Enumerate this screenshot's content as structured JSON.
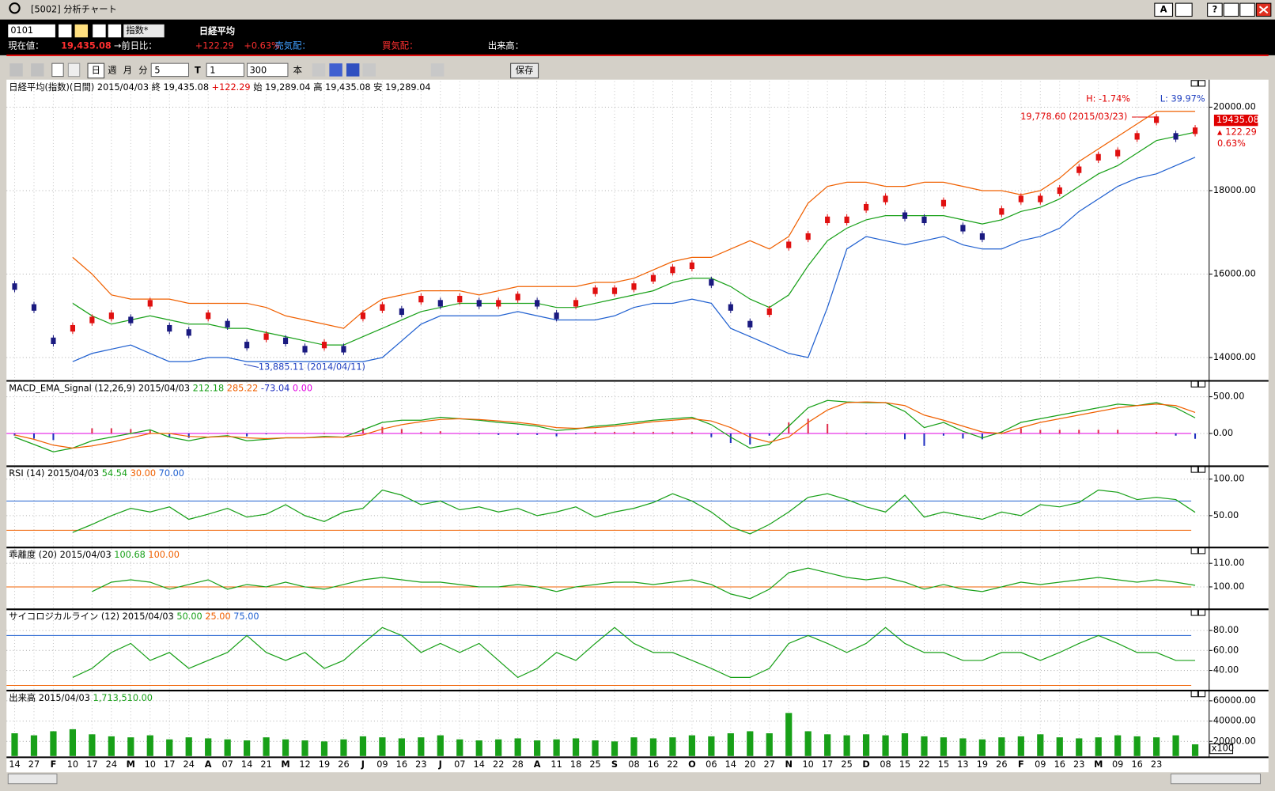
{
  "window": {
    "title": "[5002] 分析チャート",
    "buttons": [
      "A",
      "?"
    ]
  },
  "toolbar": {
    "code": "0101",
    "index_select": "指数*",
    "name": "日経平均",
    "period_buttons": [
      "日",
      "週",
      "月",
      "分"
    ],
    "minutes": "5",
    "t_label": "T",
    "t_value": "1",
    "count": "300",
    "count_unit": "本",
    "save": "保存"
  },
  "quote": {
    "price_label": "現在値：",
    "price": "19,435.08",
    "change_label": "→前日比：",
    "change": "+122.29",
    "change_pct": "+0.63%",
    "ask_label": "売気配：",
    "bid_label": "買気配：",
    "volume_label": "出来高："
  },
  "chart_data": [
    {
      "type": "line",
      "legend": [
        {
          "text": "日経平均(指数)(日間) 2015/04/03  終 19,435.08 ",
          "color": "#000000"
        },
        {
          "text": "+122.29",
          "color": "#e00000"
        },
        {
          "text": "  始 19,289.04 高 19,435.08 安 19,289.04",
          "color": "#000000"
        }
      ],
      "ylim": [
        13470,
        20620
      ],
      "yticks": [
        {
          "value": 14000,
          "label": "14000.00"
        },
        {
          "value": 16000,
          "label": "16000.00"
        },
        {
          "value": 18000,
          "label": "18000.00"
        },
        {
          "value": 20000,
          "label": "20000.00"
        }
      ],
      "grid": true,
      "series": [
        {
          "type": "line",
          "color": "#f06000",
          "values": [
            null,
            null,
            null,
            16400,
            16000,
            15500,
            15400,
            15400,
            15400,
            15300,
            15300,
            15300,
            15300,
            15200,
            15000,
            14900,
            14800,
            14700,
            15100,
            15400,
            15500,
            15600,
            15600,
            15600,
            15500,
            15600,
            15700,
            15700,
            15700,
            15700,
            15800,
            15800,
            15900,
            16100,
            16300,
            16400,
            16400,
            16600,
            16800,
            16600,
            16900,
            17700,
            18100,
            18200,
            18200,
            18100,
            18100,
            18200,
            18200,
            18100,
            18000,
            18000,
            17900,
            18000,
            18300,
            18700,
            19000,
            19300,
            19600,
            19900,
            19900,
            19900
          ]
        },
        {
          "type": "line",
          "color": "#2060d0",
          "values": [
            null,
            null,
            null,
            13900,
            14100,
            14200,
            14300,
            14100,
            13900,
            13900,
            14000,
            14000,
            13900,
            13900,
            13900,
            13900,
            13900,
            13900,
            13900,
            14000,
            14400,
            14800,
            15000,
            15000,
            15000,
            15000,
            15100,
            15000,
            14900,
            14900,
            14900,
            15000,
            15200,
            15300,
            15300,
            15400,
            15300,
            14700,
            14500,
            14300,
            14100,
            14000,
            15200,
            16600,
            16900,
            16800,
            16700,
            16800,
            16900,
            16700,
            16600,
            16600,
            16800,
            16900,
            17100,
            17500,
            17800,
            18100,
            18300,
            18400,
            18600,
            18800
          ]
        },
        {
          "type": "line",
          "color": "#18a018",
          "values": [
            null,
            null,
            null,
            15300,
            15000,
            14800,
            14900,
            15000,
            14900,
            14800,
            14800,
            14700,
            14700,
            14600,
            14500,
            14400,
            14300,
            14300,
            14500,
            14700,
            14900,
            15100,
            15200,
            15300,
            15300,
            15300,
            15300,
            15300,
            15200,
            15200,
            15300,
            15400,
            15500,
            15600,
            15800,
            15900,
            15900,
            15700,
            15400,
            15200,
            15500,
            16200,
            16800,
            17100,
            17300,
            17400,
            17400,
            17400,
            17400,
            17300,
            17200,
            17300,
            17500,
            17600,
            17800,
            18100,
            18400,
            18600,
            18900,
            19200,
            19300,
            19400
          ]
        },
        {
          "type": "candle",
          "color": "#1a1a80",
          "up_color": "#e01010",
          "values": [
            15700,
            15200,
            14400,
            14700,
            14900,
            15000,
            14900,
            15300,
            14700,
            14600,
            15000,
            14800,
            14300,
            14500,
            14400,
            14200,
            14300,
            14200,
            15000,
            15200,
            15100,
            15400,
            15300,
            15400,
            15300,
            15300,
            15450,
            15300,
            15000,
            15300,
            15600,
            15600,
            15700,
            15900,
            16100,
            16200,
            15800,
            15200,
            14800,
            15100,
            16700,
            16900,
            17300,
            17300,
            17600,
            17800,
            17400,
            17300,
            17700,
            17100,
            16900,
            17500,
            17800,
            17800,
            18000,
            18500,
            18800,
            18900,
            19300,
            19700,
            19300,
            19435
          ]
        }
      ],
      "annotations": {
        "high": "H: -1.74%",
        "low": "L: 39.97%",
        "max": "19,778.60 (2015/03/23)",
        "min": "13,885.11 (2014/04/11)",
        "last": "19435.08",
        "change": "122.29",
        "change_pct": "0.63%"
      }
    },
    {
      "type": "line",
      "legend": [
        {
          "text": "MACD_EMA_Signal (12,26,9) 2015/04/03 ",
          "color": "#000000"
        },
        {
          "text": "212.18 ",
          "color": "#18a018"
        },
        {
          "text": "285.22 ",
          "color": "#f06000"
        },
        {
          "text": "-73.04 ",
          "color": "#2030c0"
        },
        {
          "text": "0.00",
          "color": "#e000e0"
        }
      ],
      "ylim": [
        -430,
        700
      ],
      "yticks": [
        {
          "value": 0,
          "label": "0.00"
        },
        {
          "value": 500,
          "label": "500.00"
        }
      ],
      "grid": true,
      "hlines": [
        {
          "value": 0,
          "color": "#e000e0"
        }
      ],
      "series": [
        {
          "type": "bar",
          "color": "#e03050",
          "neg_color": "#2030c0",
          "values": [
            -30,
            -70,
            -90,
            0,
            70,
            70,
            60,
            50,
            -50,
            -60,
            0,
            10,
            -40,
            -10,
            0,
            0,
            10,
            0,
            70,
            90,
            60,
            20,
            30,
            0,
            -10,
            -20,
            -20,
            -20,
            -40,
            -10,
            20,
            20,
            20,
            20,
            20,
            20,
            -50,
            -130,
            -150,
            -30,
            150,
            200,
            130,
            10,
            -10,
            0,
            -80,
            -170,
            -30,
            -70,
            -80,
            20,
            70,
            50,
            50,
            50,
            50,
            50,
            0,
            20,
            -30,
            -73.04
          ]
        },
        {
          "type": "line",
          "color": "#18a018",
          "values": [
            -50,
            -150,
            -250,
            -200,
            -100,
            -50,
            0,
            50,
            -50,
            -100,
            -50,
            -30,
            -100,
            -80,
            -60,
            -60,
            -40,
            -50,
            50,
            150,
            180,
            180,
            220,
            200,
            180,
            150,
            130,
            100,
            40,
            60,
            100,
            120,
            150,
            180,
            200,
            220,
            120,
            -50,
            -200,
            -150,
            100,
            350,
            450,
            430,
            420,
            420,
            300,
            80,
            150,
            30,
            -60,
            20,
            150,
            200,
            250,
            300,
            350,
            400,
            380,
            420,
            350,
            212.18
          ]
        },
        {
          "type": "line",
          "color": "#f06000",
          "values": [
            -20,
            -80,
            -160,
            -200,
            -170,
            -120,
            -60,
            0,
            0,
            -40,
            -50,
            -40,
            -60,
            -70,
            -60,
            -60,
            -50,
            -50,
            -20,
            60,
            120,
            160,
            190,
            200,
            190,
            170,
            150,
            120,
            80,
            70,
            80,
            100,
            130,
            160,
            180,
            200,
            170,
            80,
            -50,
            -120,
            -50,
            150,
            320,
            420,
            430,
            420,
            380,
            250,
            180,
            100,
            20,
            0,
            80,
            150,
            200,
            250,
            300,
            350,
            380,
            400,
            380,
            285.22
          ]
        }
      ]
    },
    {
      "type": "line",
      "legend": [
        {
          "text": "RSI (14) 2015/04/03 ",
          "color": "#000000"
        },
        {
          "text": "54.54 ",
          "color": "#18a018"
        },
        {
          "text": "30.00 ",
          "color": "#f06000"
        },
        {
          "text": "70.00",
          "color": "#2060d0"
        }
      ],
      "ylim": [
        8,
        116
      ],
      "yticks": [
        {
          "value": 50,
          "label": "50.00"
        },
        {
          "value": 100,
          "label": "100.00"
        }
      ],
      "grid": true,
      "hlines": [
        {
          "value": 70,
          "color": "#2060d0"
        },
        {
          "value": 30,
          "color": "#f06000"
        }
      ],
      "series": [
        {
          "type": "line",
          "color": "#18a018",
          "values": [
            null,
            null,
            null,
            27,
            38,
            50,
            60,
            55,
            62,
            45,
            52,
            60,
            48,
            52,
            65,
            50,
            42,
            55,
            60,
            85,
            78,
            65,
            70,
            58,
            62,
            55,
            60,
            50,
            55,
            62,
            48,
            55,
            60,
            68,
            80,
            70,
            55,
            35,
            25,
            38,
            55,
            75,
            80,
            72,
            62,
            55,
            78,
            48,
            55,
            50,
            45,
            55,
            50,
            65,
            62,
            68,
            85,
            82,
            72,
            75,
            72,
            54.54
          ]
        }
      ]
    },
    {
      "type": "line",
      "legend": [
        {
          "text": "乖離度 (20) 2015/04/03 ",
          "color": "#000000"
        },
        {
          "text": "100.68 ",
          "color": "#18a018"
        },
        {
          "text": "100.00",
          "color": "#f06000"
        }
      ],
      "ylim": [
        91,
        116.2
      ],
      "yticks": [
        {
          "value": 100,
          "label": "100.00"
        },
        {
          "value": 110,
          "label": "110.00"
        }
      ],
      "grid": true,
      "hlines": [
        {
          "value": 100,
          "color": "#f06000"
        }
      ],
      "series": [
        {
          "type": "line",
          "color": "#18a018",
          "values": [
            null,
            null,
            null,
            null,
            98,
            102,
            103,
            102,
            99,
            101,
            103,
            99,
            101,
            100,
            102,
            100,
            99,
            101,
            103,
            104,
            103,
            102,
            102,
            101,
            100,
            100,
            101,
            100,
            98,
            100,
            101,
            102,
            102,
            101,
            102,
            103,
            101,
            97,
            95,
            99,
            106,
            108,
            106,
            104,
            103,
            104,
            102,
            99,
            101,
            99,
            98,
            100,
            102,
            101,
            102,
            103,
            104,
            103,
            102,
            103,
            102,
            100.68
          ]
        }
      ]
    },
    {
      "type": "line",
      "legend": [
        {
          "text": "サイコロジカルライン (12) 2015/04/03 ",
          "color": "#000000"
        },
        {
          "text": "50.00 ",
          "color": "#18a018"
        },
        {
          "text": "25.00 ",
          "color": "#f06000"
        },
        {
          "text": "75.00",
          "color": "#2060d0"
        }
      ],
      "ylim": [
        21,
        100
      ],
      "yticks": [
        {
          "value": 40,
          "label": "40.00"
        },
        {
          "value": 60,
          "label": "60.00"
        },
        {
          "value": 80,
          "label": "80.00"
        }
      ],
      "grid": true,
      "hlines": [
        {
          "value": 75,
          "color": "#2060d0"
        },
        {
          "value": 25,
          "color": "#f06000"
        }
      ],
      "series": [
        {
          "type": "line",
          "color": "#18a018",
          "values": [
            null,
            null,
            null,
            33,
            42,
            58,
            67,
            50,
            58,
            42,
            50,
            58,
            75,
            58,
            50,
            58,
            42,
            50,
            67,
            83,
            75,
            58,
            67,
            58,
            67,
            50,
            33,
            42,
            58,
            50,
            67,
            83,
            67,
            58,
            58,
            50,
            42,
            33,
            33,
            42,
            67,
            75,
            67,
            58,
            67,
            83,
            67,
            58,
            58,
            50,
            50,
            58,
            58,
            50,
            58,
            67,
            75,
            67,
            58,
            58,
            50,
            50
          ]
        }
      ]
    },
    {
      "type": "bar",
      "legend": [
        {
          "text": "出来高 2015/04/03 ",
          "color": "#000000"
        },
        {
          "text": "1,713,510.00",
          "color": "#18a018"
        }
      ],
      "unit": "x100",
      "ylim": [
        5600,
        68800
      ],
      "yticks": [
        {
          "value": 20000,
          "label": "20000.00"
        },
        {
          "value": 40000,
          "label": "40000.00"
        },
        {
          "value": 60000,
          "label": "60000.00"
        }
      ],
      "grid": true,
      "color": "#18a018",
      "categories": [
        "14",
        "27",
        "F",
        "10",
        "17",
        "24",
        "M",
        "10",
        "17",
        "24",
        "A",
        "07",
        "14",
        "21",
        "M",
        "12",
        "19",
        "26",
        "J",
        "09",
        "16",
        "23",
        "J",
        "07",
        "14",
        "22",
        "28",
        "A",
        "11",
        "18",
        "25",
        "S",
        "08",
        "16",
        "22",
        "O",
        "06",
        "14",
        "20",
        "27",
        "N",
        "10",
        "17",
        "25",
        "D",
        "08",
        "15",
        "22",
        "15",
        "13",
        "19",
        "26",
        "F",
        "09",
        "16",
        "23",
        "M",
        "09",
        "16",
        "23",
        null,
        null
      ],
      "values": [
        28000,
        26000,
        30000,
        32000,
        27000,
        25000,
        24000,
        26000,
        22000,
        24000,
        23000,
        22000,
        21000,
        24000,
        22000,
        21000,
        20000,
        22000,
        25000,
        24000,
        23000,
        24000,
        26000,
        22000,
        21000,
        22000,
        23000,
        21000,
        22000,
        23000,
        21000,
        20000,
        24000,
        23000,
        24000,
        26000,
        25000,
        28000,
        30000,
        28000,
        48000,
        30000,
        27000,
        26000,
        27000,
        26000,
        28000,
        25000,
        24000,
        23000,
        22000,
        24000,
        25000,
        27000,
        24000,
        23000,
        24000,
        26000,
        25000,
        24000,
        26000,
        17135
      ]
    }
  ]
}
